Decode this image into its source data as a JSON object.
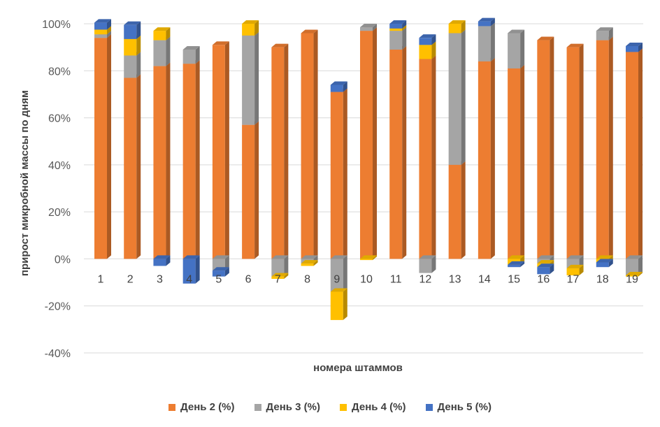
{
  "chart_data": {
    "type": "bar",
    "stacked": true,
    "three_d": true,
    "title": "",
    "xlabel": "номера штаммов",
    "ylabel": "прирост микробной массы по дням",
    "ylim": [
      -40,
      100
    ],
    "yticks": [
      -40,
      -20,
      0,
      20,
      40,
      60,
      80,
      100
    ],
    "ytick_format": "{v}%",
    "grid": true,
    "legend_position": "bottom",
    "categories": [
      "1",
      "2",
      "3",
      "4",
      "5",
      "6",
      "7",
      "8",
      "9",
      "10",
      "11",
      "12",
      "13",
      "14",
      "15",
      "16",
      "17",
      "18",
      "19"
    ],
    "series": [
      {
        "name": "День 2 (%)",
        "color": "#ED7D31",
        "values": [
          94,
          77,
          82,
          83,
          91,
          57,
          90,
          96,
          71,
          97,
          89,
          85,
          40,
          84,
          81,
          93,
          90,
          93,
          88
        ]
      },
      {
        "name": "День 3 (%)",
        "color": "#A5A5A5",
        "values": [
          1.5,
          9.5,
          11,
          6,
          -5,
          38,
          -7.5,
          -2,
          -14,
          1.5,
          8,
          -6,
          56,
          15,
          15,
          -2,
          -4,
          4,
          -7
        ]
      },
      {
        "name": "День 4 (%)",
        "color": "#FFC000",
        "values": [
          2,
          7,
          4,
          0,
          0,
          5,
          -1,
          -1,
          -12,
          -0.5,
          1,
          6,
          4,
          0,
          -2.5,
          -1.5,
          -3,
          -1.5,
          -0.5
        ]
      },
      {
        "name": "День 5 (%)",
        "color": "#4472C4",
        "values": [
          3,
          6,
          -3,
          -10.5,
          -2.5,
          0,
          0,
          0,
          3,
          0,
          2,
          3,
          0,
          2,
          -1,
          -3,
          0,
          -2,
          2.5
        ]
      }
    ]
  },
  "legend": {
    "items": [
      {
        "label": "День 2 (%)",
        "color": "#ED7D31"
      },
      {
        "label": "День 3 (%)",
        "color": "#A5A5A5"
      },
      {
        "label": "День 4 (%)",
        "color": "#FFC000"
      },
      {
        "label": "День 5 (%)",
        "color": "#4472C4"
      }
    ]
  }
}
